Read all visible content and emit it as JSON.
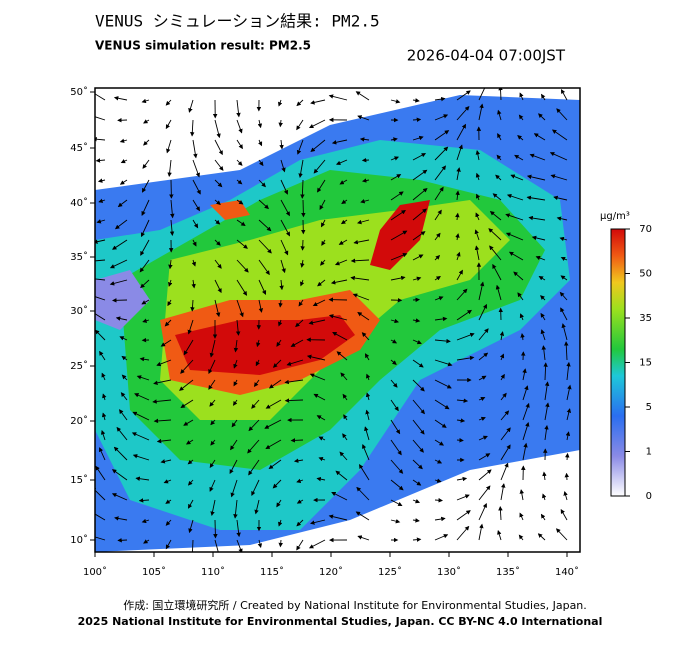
{
  "header": {
    "title_ja": "VENUS シミュレーション結果: PM2.5",
    "title_en": "VENUS simulation result: PM2.5",
    "timestamp": "2026-04-04 07:00JST"
  },
  "map": {
    "lat_labels": [
      "50˚",
      "45˚",
      "40˚",
      "35˚",
      "30˚",
      "25˚",
      "20˚",
      "15˚",
      "10˚"
    ],
    "lon_labels": [
      "100˚",
      "105˚",
      "110˚",
      "115˚",
      "120˚",
      "125˚",
      "130˚",
      "135˚",
      "140˚"
    ]
  },
  "colorbar": {
    "unit": "μg/m³",
    "ticks": [
      "70",
      "50",
      "35",
      "15",
      "5",
      "1",
      "0"
    ]
  },
  "footer": {
    "credit": "作成: 国立環境研究所 / Created by National Institute for Environmental Studies, Japan.",
    "license": "2025 National Institute for Environmental Studies, Japan. CC BY-NC 4.0 International"
  }
}
